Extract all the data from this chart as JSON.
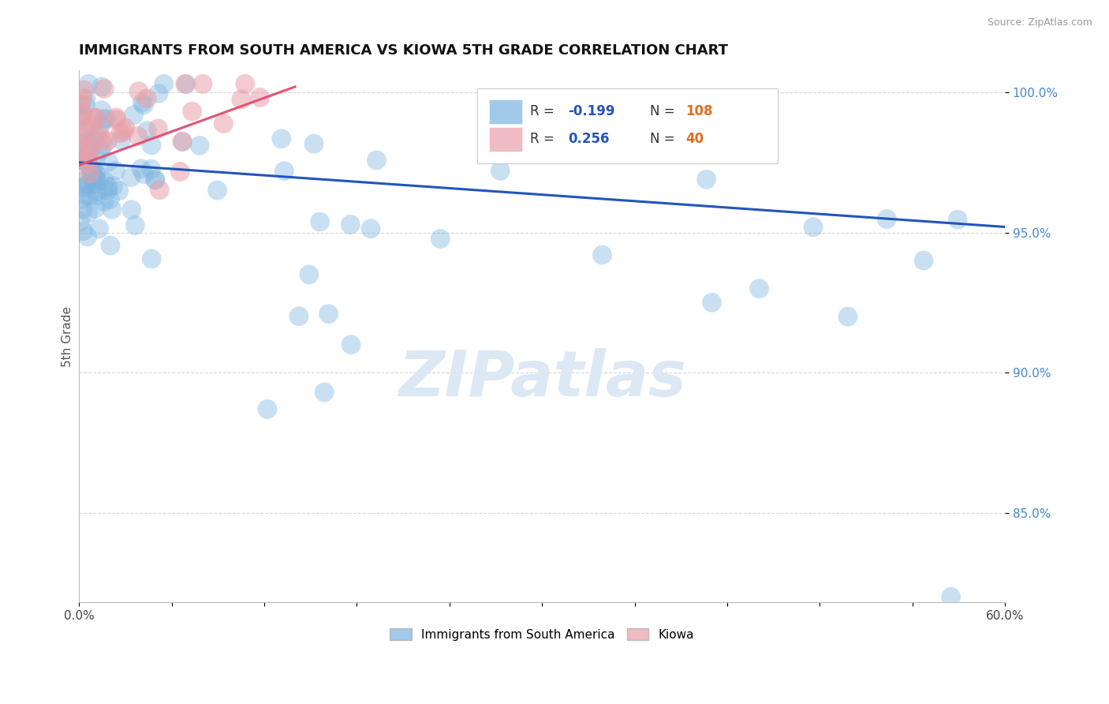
{
  "title": "IMMIGRANTS FROM SOUTH AMERICA VS KIOWA 5TH GRADE CORRELATION CHART",
  "source_text": "Source: ZipAtlas.com",
  "ylabel": "5th Grade",
  "xlim": [
    0.0,
    0.6
  ],
  "ylim": [
    0.818,
    1.008
  ],
  "ytick_positions": [
    0.85,
    0.9,
    0.95,
    1.0
  ],
  "ytick_labels": [
    "85.0%",
    "90.0%",
    "95.0%",
    "100.0%"
  ],
  "blue_color": "#7ab3e0",
  "pink_color": "#e8a0a8",
  "blue_line_color": "#2255bb",
  "pink_line_color": "#dd5577",
  "watermark_color": "#dde8f5",
  "legend_label_blue": "Immigrants from South America",
  "legend_label_pink": "Kiowa",
  "background_color": "#ffffff",
  "blue_line_x0": 0.0,
  "blue_line_y0": 0.975,
  "blue_line_x1": 0.6,
  "blue_line_y1": 0.952,
  "pink_line_x0": 0.0,
  "pink_line_y0": 0.974,
  "pink_line_x1": 0.14,
  "pink_line_y1": 1.002
}
